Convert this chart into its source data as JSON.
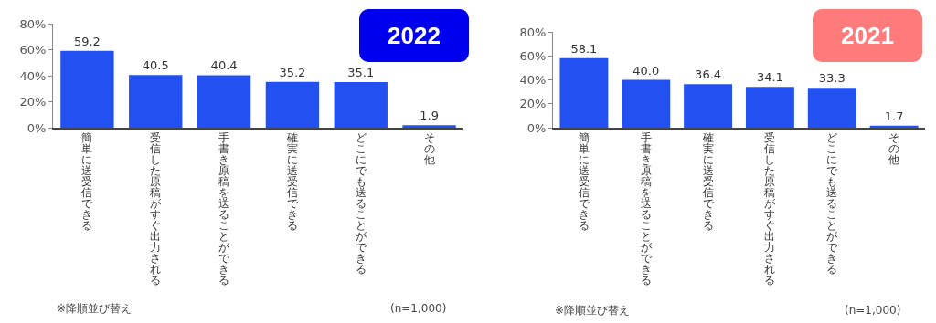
{
  "chart_data": [
    {
      "type": "bar",
      "title": "2022",
      "categories": [
        "簡単に送受信できる",
        "受信した原稿がすぐ出力される",
        "手書き原稿を送ることができる",
        "確実に送受信できる",
        "どこにでも送ることができる",
        "その他"
      ],
      "values": [
        59.2,
        40.5,
        40.4,
        35.2,
        35.1,
        1.9
      ],
      "color": "#2350f0",
      "data_labels": true,
      "ylim": [
        0,
        80
      ],
      "yticks": [
        {
          "value": 0,
          "label": "0%"
        },
        {
          "value": 20,
          "label": "20%"
        },
        {
          "value": 40,
          "label": "40%"
        },
        {
          "value": 60,
          "label": "60%"
        },
        {
          "value": 80,
          "label": "80%"
        }
      ],
      "grid": false,
      "annotations": [
        "※降順並び替え",
        "(n=1,000)"
      ]
    },
    {
      "type": "bar",
      "title": "2021",
      "categories": [
        "簡単に送受信できる",
        "手書き原稿を送ることができる",
        "確実に送受信できる",
        "受信した原稿がすぐ出力される",
        "どこにでも送ることができる",
        "その他"
      ],
      "values": [
        58.1,
        40.0,
        36.4,
        34.1,
        33.3,
        1.7
      ],
      "color": "#2350f0",
      "value_labels": [
        "58.1",
        "40.0",
        "36.4",
        "34.1",
        "33.3",
        "1.7"
      ],
      "ylim": [
        0,
        80
      ],
      "yticks": [
        {
          "value": 0,
          "label": "0%"
        },
        {
          "value": 20,
          "label": "20%"
        },
        {
          "value": 40,
          "label": "40%"
        },
        {
          "value": 60,
          "label": "60%"
        },
        {
          "value": 80,
          "label": "80%"
        }
      ],
      "grid": false,
      "annotations": [
        "※降順並び替え",
        "(n=1,000)"
      ]
    }
  ]
}
